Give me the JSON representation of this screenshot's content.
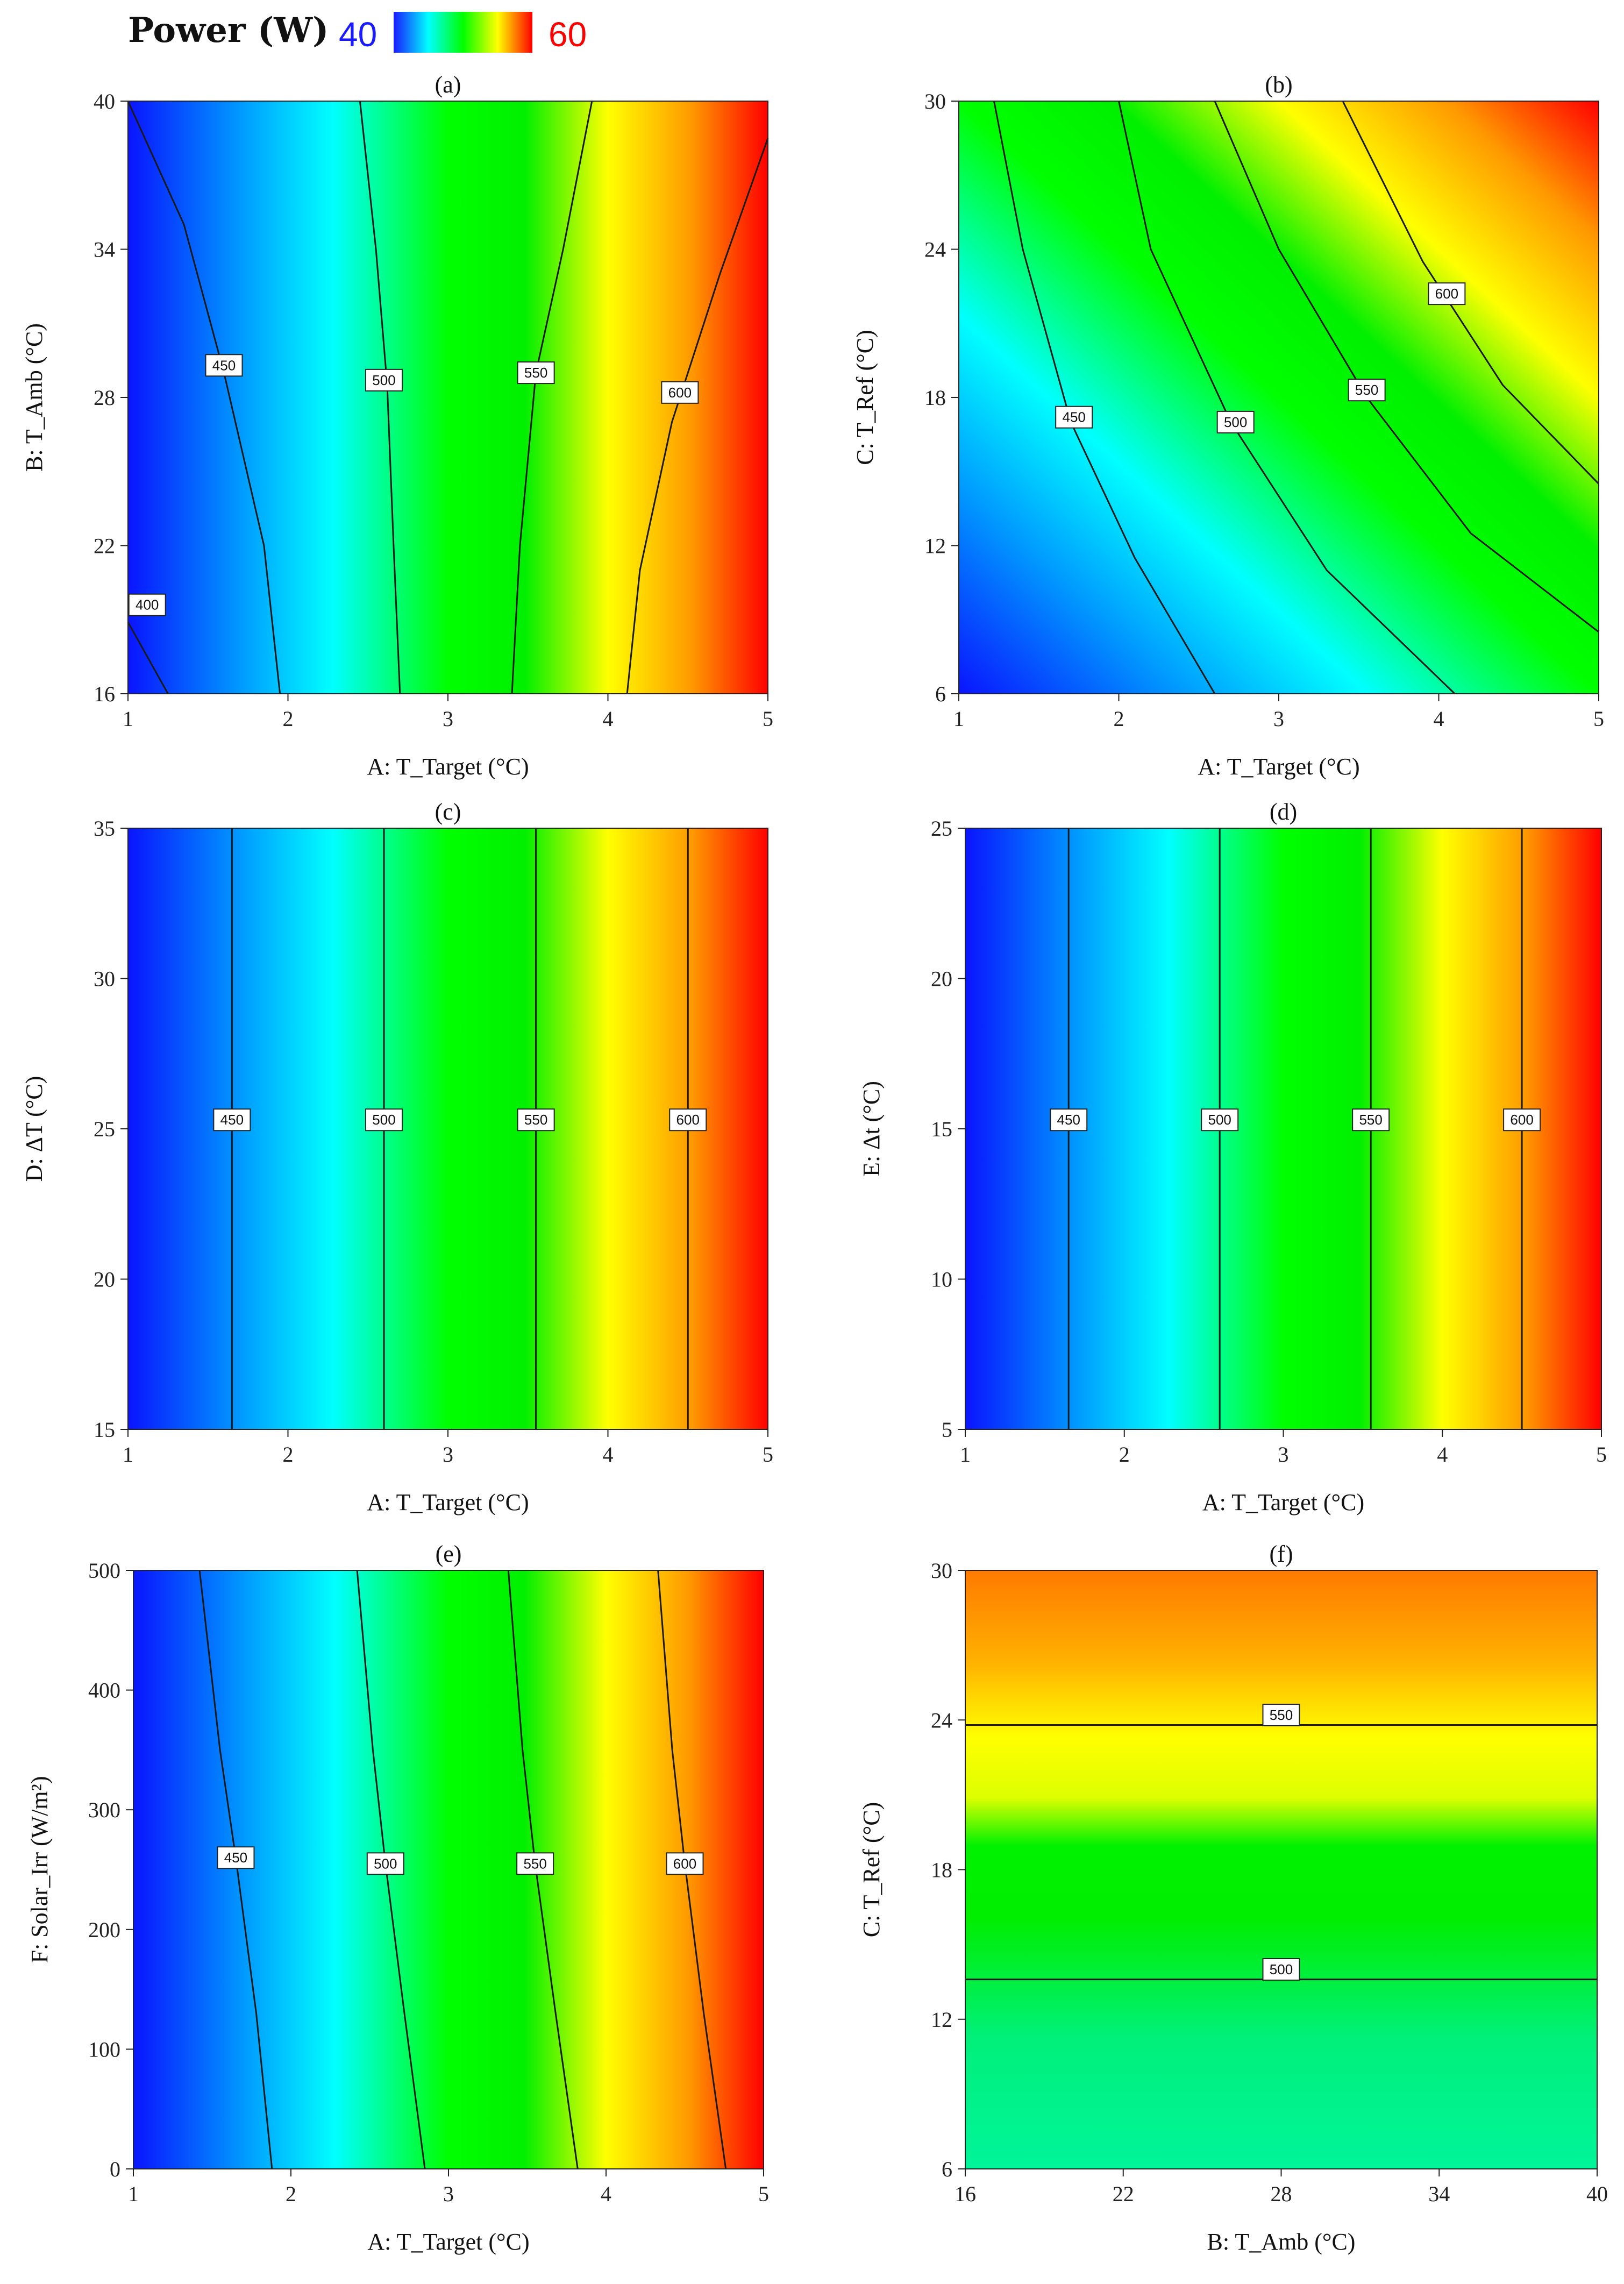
{
  "legend": {
    "title": "Power (W)",
    "min_label": "40",
    "max_label": "60",
    "min_color": "#1a1aff",
    "max_color": "#ff0000"
  },
  "chart_data": [
    {
      "type": "heatmap",
      "panel": "(a)",
      "xlabel": "A: T_Target (°C)",
      "ylabel": "B: T_Amb (°C)",
      "xlim": [
        1,
        5
      ],
      "ylim": [
        16,
        40
      ],
      "xticks": [
        "1",
        "2",
        "3",
        "4",
        "5"
      ],
      "yticks": [
        "16",
        "22",
        "28",
        "34",
        "40"
      ],
      "contours": [
        {
          "label": "400",
          "points": [
            [
              1.0,
              18.9
            ],
            [
              1.25,
              16.0
            ]
          ],
          "label_at": [
            1.12,
            19.6
          ]
        },
        {
          "label": "450",
          "points": [
            [
              1.0,
              40.0
            ],
            [
              1.35,
              35.0
            ],
            [
              1.6,
              29.0
            ],
            [
              1.85,
              22.0
            ],
            [
              1.95,
              16.0
            ]
          ],
          "label_at": [
            1.6,
            29.3
          ]
        },
        {
          "label": "500",
          "points": [
            [
              2.45,
              40.0
            ],
            [
              2.55,
              34.0
            ],
            [
              2.62,
              28.5
            ],
            [
              2.66,
              22.0
            ],
            [
              2.7,
              16.0
            ]
          ],
          "label_at": [
            2.6,
            28.7
          ]
        },
        {
          "label": "550",
          "points": [
            [
              3.9,
              40.0
            ],
            [
              3.72,
              34.0
            ],
            [
              3.55,
              29.0
            ],
            [
              3.45,
              22.0
            ],
            [
              3.4,
              16.0
            ]
          ],
          "label_at": [
            3.55,
            29.0
          ]
        },
        {
          "label": "600",
          "points": [
            [
              5.0,
              38.5
            ],
            [
              4.7,
              33.0
            ],
            [
              4.4,
              27.0
            ],
            [
              4.2,
              21.0
            ],
            [
              4.12,
              16.0
            ]
          ],
          "label_at": [
            4.45,
            28.2
          ]
        }
      ]
    },
    {
      "type": "heatmap",
      "panel": "(b)",
      "xlabel": "A: T_Target (°C)",
      "ylabel": "C: T_Ref (°C)",
      "xlim": [
        1,
        5
      ],
      "ylim": [
        6,
        30
      ],
      "xticks": [
        "1",
        "2",
        "3",
        "4",
        "5"
      ],
      "yticks": [
        "6",
        "12",
        "18",
        "24",
        "30"
      ],
      "contours": [
        {
          "label": "450",
          "points": [
            [
              1.22,
              30.0
            ],
            [
              1.4,
              24.0
            ],
            [
              1.7,
              17.0
            ],
            [
              2.1,
              11.5
            ],
            [
              2.6,
              6.0
            ]
          ],
          "label_at": [
            1.72,
            17.2
          ]
        },
        {
          "label": "500",
          "points": [
            [
              2.0,
              30.0
            ],
            [
              2.2,
              24.0
            ],
            [
              2.7,
              17.0
            ],
            [
              3.3,
              11.0
            ],
            [
              4.1,
              6.0
            ]
          ],
          "label_at": [
            2.73,
            17.0
          ]
        },
        {
          "label": "550",
          "points": [
            [
              2.6,
              30.0
            ],
            [
              3.0,
              24.0
            ],
            [
              3.55,
              18.0
            ],
            [
              4.2,
              12.5
            ],
            [
              5.0,
              8.5
            ]
          ],
          "label_at": [
            3.55,
            18.3
          ]
        },
        {
          "label": "600",
          "points": [
            [
              3.4,
              30.0
            ],
            [
              3.9,
              23.5
            ],
            [
              4.4,
              18.5
            ],
            [
              5.0,
              14.5
            ]
          ],
          "label_at": [
            4.05,
            22.2
          ]
        }
      ]
    },
    {
      "type": "heatmap",
      "panel": "(c)",
      "xlabel": "A: T_Target (°C)",
      "ylabel": "D: ΔT (°C)",
      "xlim": [
        1,
        5
      ],
      "ylim": [
        15,
        35
      ],
      "xticks": [
        "1",
        "2",
        "3",
        "4",
        "5"
      ],
      "yticks": [
        "15",
        "20",
        "25",
        "30",
        "35"
      ],
      "contours": [
        {
          "label": "450",
          "points": [
            [
              1.65,
              35.0
            ],
            [
              1.65,
              15.0
            ]
          ],
          "label_at": [
            1.65,
            25.3
          ]
        },
        {
          "label": "500",
          "points": [
            [
              2.6,
              35.0
            ],
            [
              2.6,
              15.0
            ]
          ],
          "label_at": [
            2.6,
            25.3
          ]
        },
        {
          "label": "550",
          "points": [
            [
              3.55,
              35.0
            ],
            [
              3.55,
              15.0
            ]
          ],
          "label_at": [
            3.55,
            25.3
          ]
        },
        {
          "label": "600",
          "points": [
            [
              4.5,
              35.0
            ],
            [
              4.5,
              15.0
            ]
          ],
          "label_at": [
            4.5,
            25.3
          ]
        }
      ]
    },
    {
      "type": "heatmap",
      "panel": "(d)",
      "xlabel": "A: T_Target (°C)",
      "ylabel": "E: Δt (°C)",
      "xlim": [
        1,
        5
      ],
      "ylim": [
        5,
        25
      ],
      "xticks": [
        "1",
        "2",
        "3",
        "4",
        "5"
      ],
      "yticks": [
        "5",
        "10",
        "15",
        "20",
        "25"
      ],
      "contours": [
        {
          "label": "450",
          "points": [
            [
              1.65,
              25.0
            ],
            [
              1.65,
              5.0
            ]
          ],
          "label_at": [
            1.65,
            15.3
          ]
        },
        {
          "label": "500",
          "points": [
            [
              2.6,
              25.0
            ],
            [
              2.6,
              5.0
            ]
          ],
          "label_at": [
            2.6,
            15.3
          ]
        },
        {
          "label": "550",
          "points": [
            [
              3.55,
              25.0
            ],
            [
              3.55,
              5.0
            ]
          ],
          "label_at": [
            3.55,
            15.3
          ]
        },
        {
          "label": "600",
          "points": [
            [
              4.5,
              25.0
            ],
            [
              4.5,
              5.0
            ]
          ],
          "label_at": [
            4.5,
            15.3
          ]
        }
      ]
    },
    {
      "type": "heatmap",
      "panel": "(e)",
      "xlabel": "A: T_Target (°C)",
      "ylabel": "F: Solar_Irr (W/m²)",
      "xlim": [
        1,
        5
      ],
      "ylim": [
        0,
        500
      ],
      "xticks": [
        "1",
        "2",
        "3",
        "4",
        "5"
      ],
      "yticks": [
        "0",
        "100",
        "200",
        "300",
        "400",
        "500"
      ],
      "contours": [
        {
          "label": "450",
          "points": [
            [
              1.42,
              500.0
            ],
            [
              1.55,
              350.0
            ],
            [
              1.65,
              260.0
            ],
            [
              1.78,
              130.0
            ],
            [
              1.88,
              0.0
            ]
          ],
          "label_at": [
            1.65,
            260.0
          ]
        },
        {
          "label": "500",
          "points": [
            [
              2.42,
              500.0
            ],
            [
              2.52,
              350.0
            ],
            [
              2.6,
              255.0
            ],
            [
              2.72,
              130.0
            ],
            [
              2.85,
              0.0
            ]
          ],
          "label_at": [
            2.6,
            255.0
          ]
        },
        {
          "label": "550",
          "points": [
            [
              3.38,
              500.0
            ],
            [
              3.47,
              350.0
            ],
            [
              3.55,
              255.0
            ],
            [
              3.68,
              130.0
            ],
            [
              3.82,
              0.0
            ]
          ],
          "label_at": [
            3.55,
            255.0
          ]
        },
        {
          "label": "600",
          "points": [
            [
              4.33,
              500.0
            ],
            [
              4.42,
              350.0
            ],
            [
              4.5,
              255.0
            ],
            [
              4.62,
              130.0
            ],
            [
              4.76,
              0.0
            ]
          ],
          "label_at": [
            4.5,
            255.0
          ]
        }
      ]
    },
    {
      "type": "heatmap",
      "panel": "(f)",
      "xlabel": "B: T_Amb (°C)",
      "ylabel": "C: T_Ref (°C)",
      "xlim": [
        16,
        40
      ],
      "ylim": [
        6,
        30
      ],
      "xticks": [
        "16",
        "22",
        "28",
        "34",
        "40"
      ],
      "yticks": [
        "6",
        "12",
        "18",
        "24",
        "30"
      ],
      "contours": [
        {
          "label": "550",
          "points": [
            [
              16.0,
              23.8
            ],
            [
              40.0,
              23.8
            ]
          ],
          "label_at": [
            28.0,
            24.2
          ]
        },
        {
          "label": "500",
          "points": [
            [
              16.0,
              13.6
            ],
            [
              40.0,
              13.6
            ]
          ],
          "label_at": [
            28.0,
            14.0
          ]
        }
      ]
    }
  ]
}
